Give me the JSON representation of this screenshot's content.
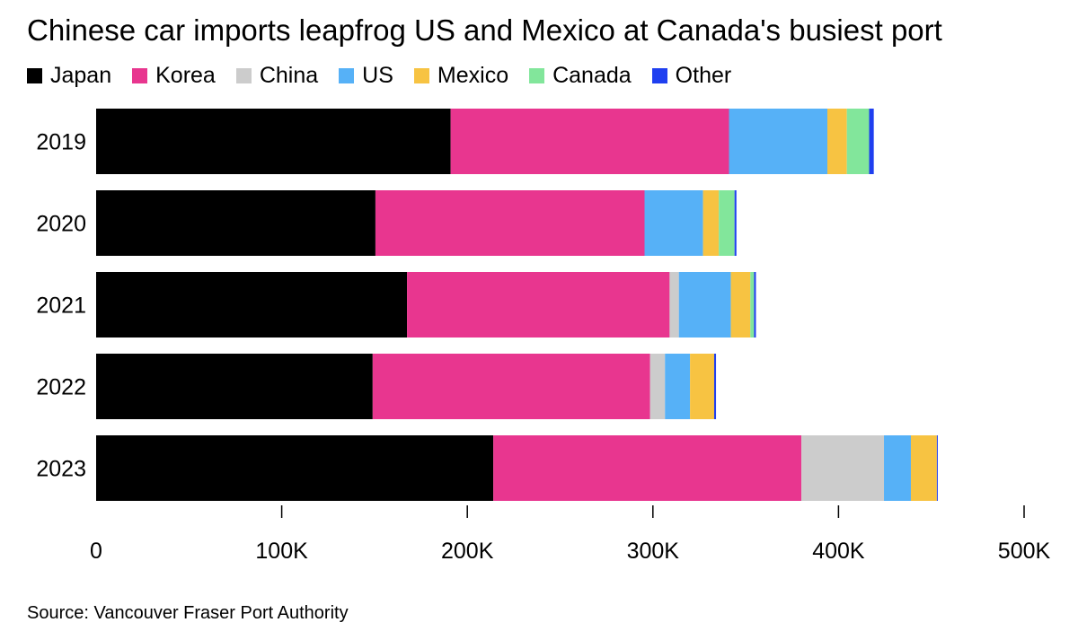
{
  "chart_data": {
    "type": "bar",
    "orientation": "horizontal",
    "stacked": true,
    "title": "Chinese car imports leapfrog US and Mexico at Canada's busiest port",
    "xlabel": "",
    "ylabel": "",
    "xlim": [
      0,
      500000
    ],
    "x_ticks": [
      0,
      100000,
      200000,
      300000,
      400000,
      500000
    ],
    "x_tick_labels": [
      "0",
      "100K",
      "200K",
      "300K",
      "400K",
      "500K"
    ],
    "legend_position": "top-left",
    "categories": [
      "2019",
      "2020",
      "2021",
      "2022",
      "2023"
    ],
    "series": [
      {
        "name": "Japan",
        "color": "#000000",
        "values": [
          191000,
          150500,
          167500,
          149000,
          214000
        ]
      },
      {
        "name": "Korea",
        "color": "#e8368f",
        "values": [
          150000,
          145000,
          141500,
          149500,
          166000
        ]
      },
      {
        "name": "China",
        "color": "#cccccc",
        "values": [
          0,
          0,
          5000,
          8000,
          44500
        ]
      },
      {
        "name": "US",
        "color": "#56b1f7",
        "values": [
          53000,
          31500,
          28000,
          13500,
          14500
        ]
      },
      {
        "name": "Mexico",
        "color": "#f7c342",
        "values": [
          10500,
          8500,
          10500,
          13000,
          14000
        ]
      },
      {
        "name": "Canada",
        "color": "#82e69b",
        "values": [
          12000,
          8500,
          2000,
          0,
          0
        ]
      },
      {
        "name": "Other",
        "color": "#1f3ff0",
        "values": [
          2500,
          1000,
          1000,
          1000,
          500
        ]
      }
    ]
  },
  "source": "Source: Vancouver Fraser Port Authority"
}
